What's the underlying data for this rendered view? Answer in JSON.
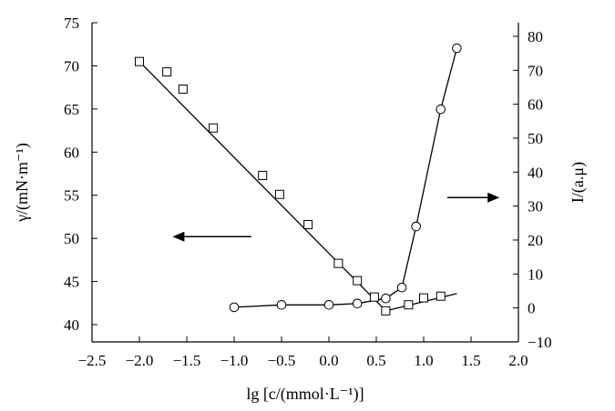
{
  "chart_data": {
    "type": "line",
    "title": "",
    "x_axis": {
      "label": "lg [c/(mmol·L⁻¹)]",
      "range": [
        -2.5,
        2.0
      ],
      "ticks": [
        "−2.5",
        "−2.0",
        "−1.5",
        "−1.0",
        "−0.5",
        "0.0",
        "0.5",
        "1.0",
        "1.5",
        "2.0"
      ]
    },
    "y_left": {
      "label": "γ/(mN·m⁻¹)",
      "range": [
        38,
        75
      ],
      "ticks": [
        "40",
        "45",
        "50",
        "55",
        "60",
        "65",
        "70",
        "75"
      ]
    },
    "y_right": {
      "label": "I/(a.μ)",
      "range": [
        -10,
        84
      ],
      "ticks": [
        "−10",
        "0",
        "10",
        "20",
        "30",
        "40",
        "50",
        "60",
        "70",
        "80"
      ]
    },
    "grid": false,
    "series": [
      {
        "axis": "left",
        "marker": "square",
        "points": [
          {
            "x": -2.0,
            "y": 70.5
          },
          {
            "x": -1.71,
            "y": 69.3
          },
          {
            "x": -1.54,
            "y": 67.3
          },
          {
            "x": -1.22,
            "y": 62.8
          },
          {
            "x": -0.7,
            "y": 57.3
          },
          {
            "x": -0.52,
            "y": 55.1
          },
          {
            "x": -0.22,
            "y": 51.6
          },
          {
            "x": 0.1,
            "y": 47.1
          },
          {
            "x": 0.3,
            "y": 45.1
          },
          {
            "x": 0.48,
            "y": 43.2
          },
          {
            "x": 0.6,
            "y": 41.6
          },
          {
            "x": 0.84,
            "y": 42.3
          },
          {
            "x": 1.0,
            "y": 43.1
          },
          {
            "x": 1.18,
            "y": 43.3
          }
        ],
        "fit_lines": [
          [
            {
              "x": -2.0,
              "y": 70.5
            },
            {
              "x": 0.6,
              "y": 41.6
            }
          ],
          [
            {
              "x": 0.6,
              "y": 41.6
            },
            {
              "x": 1.35,
              "y": 43.6
            }
          ]
        ]
      },
      {
        "axis": "right",
        "marker": "circle",
        "points": [
          {
            "x": -1.0,
            "y": 0.2
          },
          {
            "x": -0.5,
            "y": 0.9
          },
          {
            "x": 0.0,
            "y": 0.9
          },
          {
            "x": 0.3,
            "y": 1.3
          },
          {
            "x": 0.6,
            "y": 2.8
          },
          {
            "x": 0.77,
            "y": 6.0
          },
          {
            "x": 0.92,
            "y": 24.0
          },
          {
            "x": 1.18,
            "y": 58.5
          },
          {
            "x": 1.35,
            "y": 76.5
          }
        ]
      }
    ],
    "annotations": [
      {
        "type": "arrow",
        "direction": "left",
        "refers_to": "left-axis",
        "from": {
          "x": -0.82,
          "y": 50.2
        },
        "to": {
          "x": -1.65,
          "y": 50.2
        }
      },
      {
        "type": "arrow",
        "direction": "right",
        "refers_to": "right-axis",
        "from": {
          "x": 1.25,
          "y": 32.5
        },
        "to": {
          "x": 1.8,
          "y": 32.5
        }
      }
    ]
  }
}
